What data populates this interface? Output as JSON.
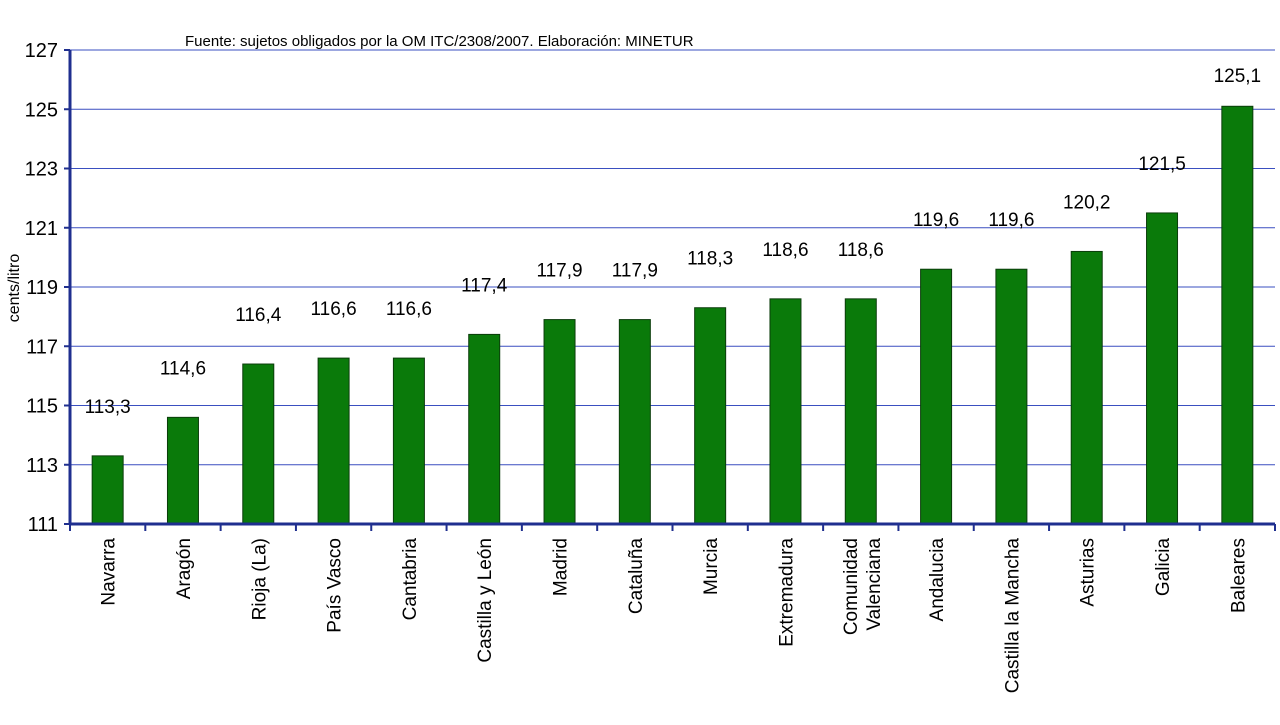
{
  "source_note": "Fuente: sujetos obligados por la OM   ITC/2308/2007.     Elaboración: MINETUR",
  "colors": {
    "bar": "#0a7a0a",
    "bar_stroke": "#0b3d0b",
    "axis": "#1f2f8f",
    "grid": "#3a4fc0"
  },
  "chart_data": {
    "type": "bar",
    "ylabel": "cents/litro",
    "ylim": [
      111,
      127
    ],
    "yticks": [
      111,
      113,
      115,
      117,
      119,
      121,
      123,
      125,
      127
    ],
    "grid": true,
    "categories": [
      "Navarra",
      "Aragón",
      "Rioja (La)",
      "País Vasco",
      "Cantabria",
      "Castilla y León",
      "Madrid",
      "Cataluña",
      "Murcia",
      "Extremadura",
      "Comunidad Valenciana",
      "Andalucia",
      "Castilla la Mancha",
      "Asturias",
      "Galicia",
      "Baleares"
    ],
    "values": [
      113.3,
      114.6,
      116.4,
      116.6,
      116.6,
      117.4,
      117.9,
      117.9,
      118.3,
      118.6,
      118.6,
      119.6,
      119.6,
      120.2,
      121.5,
      125.1
    ],
    "value_labels": [
      "113,3",
      "114,6",
      "116,4",
      "116,6",
      "116,6",
      "117,4",
      "117,9",
      "117,9",
      "118,3",
      "118,6",
      "118,6",
      "119,6",
      "119,6",
      "120,2",
      "121,5",
      "125,1"
    ]
  }
}
